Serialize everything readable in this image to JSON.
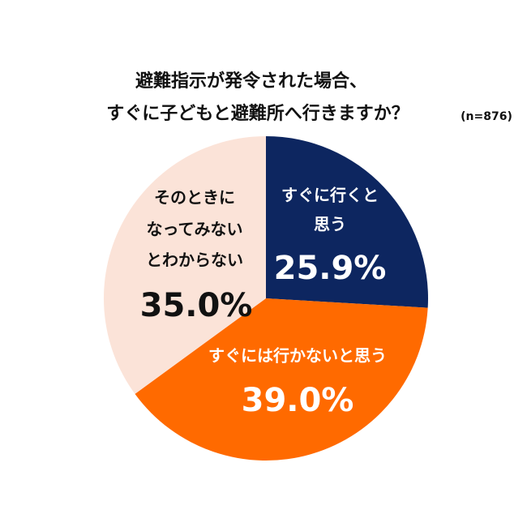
{
  "chart_data": {
    "type": "pie",
    "title": [
      "避難指示が発令された場合、",
      "すぐに子どもと避難所へ行きますか？"
    ],
    "note": "(n=876)",
    "categories": [
      [
        "すぐに行くと",
        "思う"
      ],
      [
        "すぐには行かないと思う"
      ],
      [
        "そのときに",
        "なってみない",
        "とわからない"
      ]
    ],
    "values": [
      25.9,
      39.0,
      35.0
    ],
    "value_labels": [
      "25.9%",
      "39.0%",
      "35.0%"
    ],
    "colors": [
      "#0d2660",
      "#ff6a00",
      "#fbe3d8"
    ]
  }
}
